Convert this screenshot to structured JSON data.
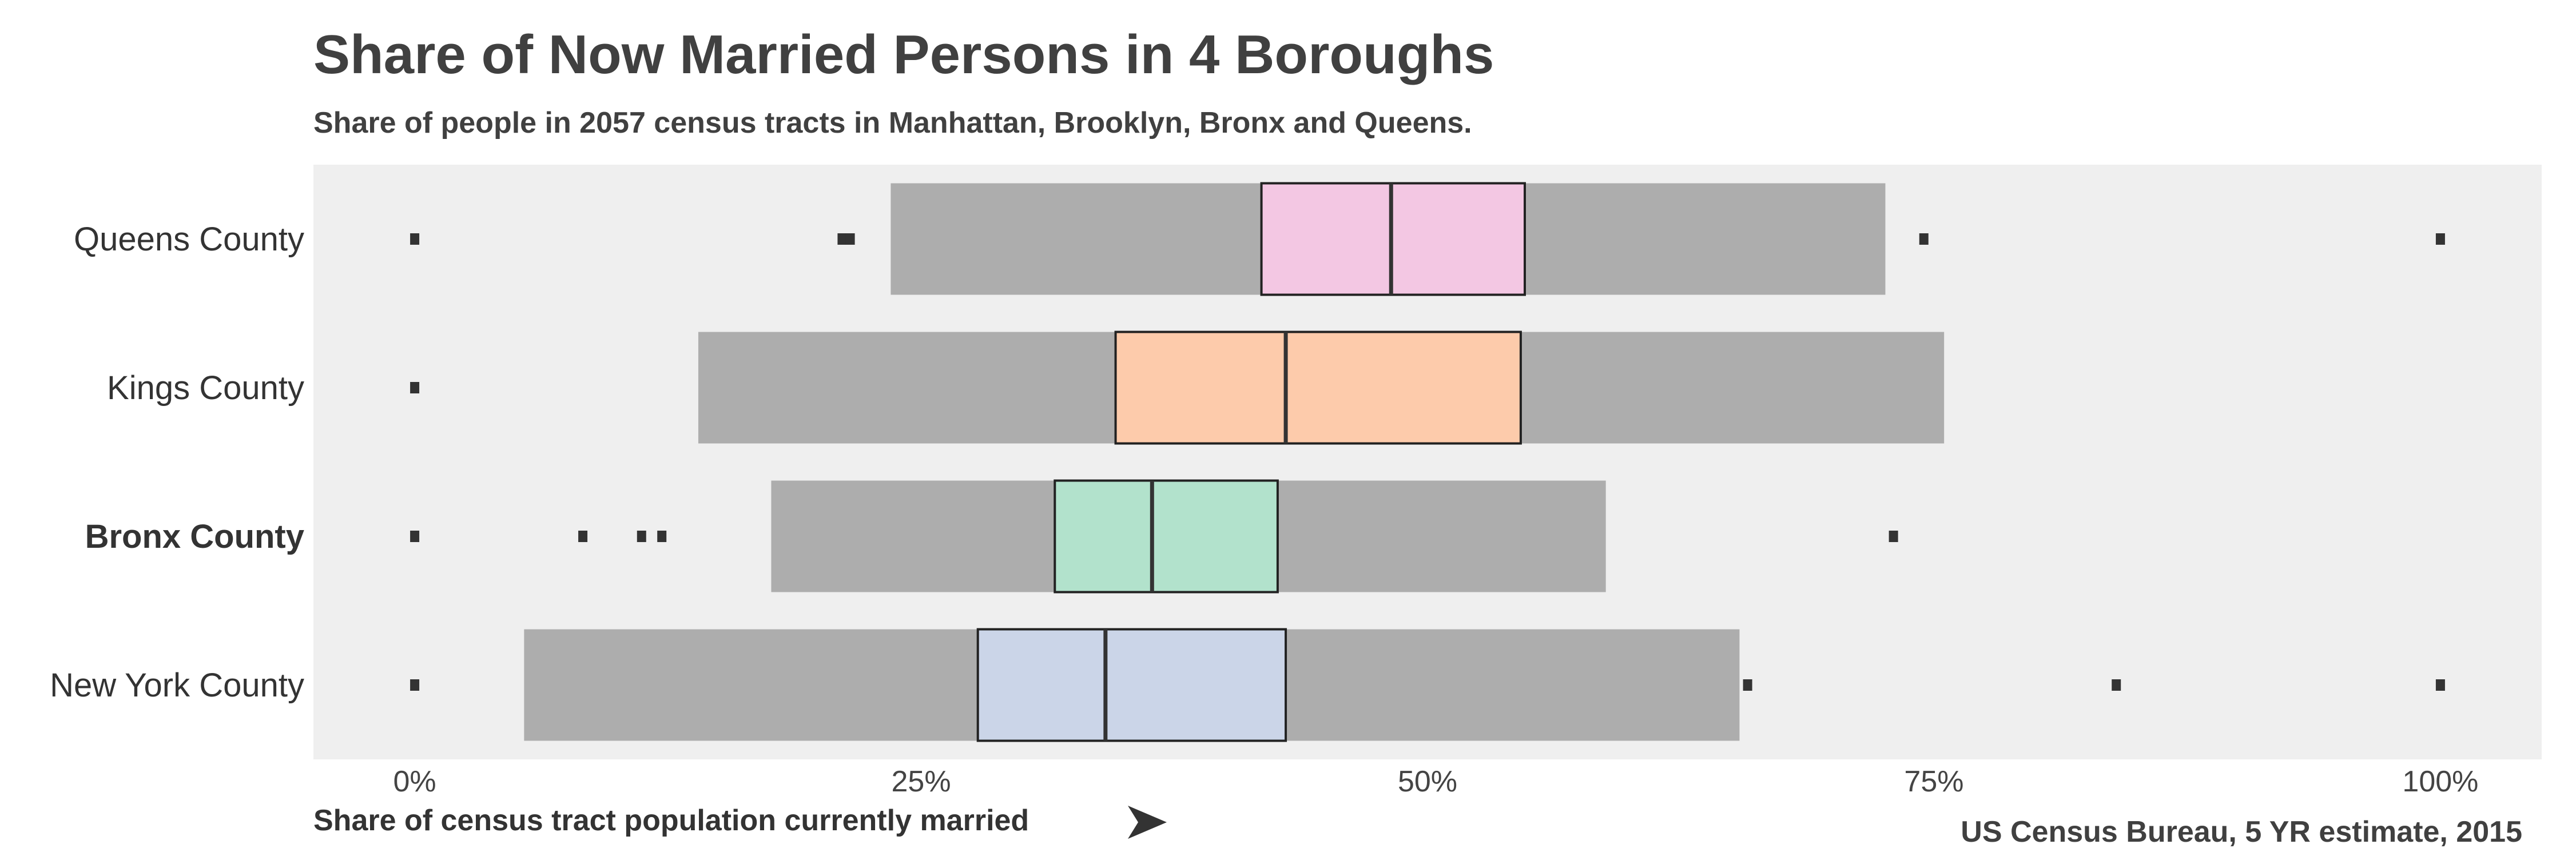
{
  "chart_data": {
    "type": "box",
    "title": "Share of Now Married Persons in 4 Boroughs",
    "subtitle": "Share of people in 2057 census tracts in Manhattan, Brooklyn, Bronx and Queens.",
    "xlabel": "Share of census tract population currently married",
    "caption": "US Census Bureau, 5 YR estimate, 2015",
    "xlim": [
      -0.05,
      1.05
    ],
    "x_ticks": [
      {
        "value": 0,
        "label": "0%"
      },
      {
        "value": 0.25,
        "label": "25%"
      },
      {
        "value": 0.5,
        "label": "50%"
      },
      {
        "value": 0.75,
        "label": "75%"
      },
      {
        "value": 1,
        "label": "100%"
      }
    ],
    "grid": false,
    "background_color": "#efefef",
    "whisker_color": "#adadad",
    "series": [
      {
        "name": "Queens County",
        "bold_label": false,
        "color": "#f3c7e3",
        "whisker_low": 0.235,
        "q1": 0.418,
        "median": 0.482,
        "q3": 0.548,
        "whisker_high": 0.726,
        "outliers": [
          0.0,
          0.211,
          0.215,
          0.745,
          1.0
        ]
      },
      {
        "name": "Kings County",
        "bold_label": false,
        "color": "#fdcbab",
        "whisker_low": 0.14,
        "q1": 0.346,
        "median": 0.43,
        "q3": 0.546,
        "whisker_high": 0.755,
        "outliers": [
          0.0
        ]
      },
      {
        "name": "Bronx County",
        "bold_label": true,
        "color": "#b2e2cc",
        "whisker_low": 0.176,
        "q1": 0.316,
        "median": 0.364,
        "q3": 0.426,
        "whisker_high": 0.588,
        "outliers": [
          0.0,
          0.083,
          0.112,
          0.122,
          0.73
        ]
      },
      {
        "name": "New York County",
        "bold_label": false,
        "color": "#cbd5e8",
        "whisker_low": 0.054,
        "q1": 0.278,
        "median": 0.341,
        "q3": 0.43,
        "whisker_high": 0.654,
        "outliers": [
          0.0,
          0.658,
          0.84,
          1.0
        ]
      }
    ]
  }
}
